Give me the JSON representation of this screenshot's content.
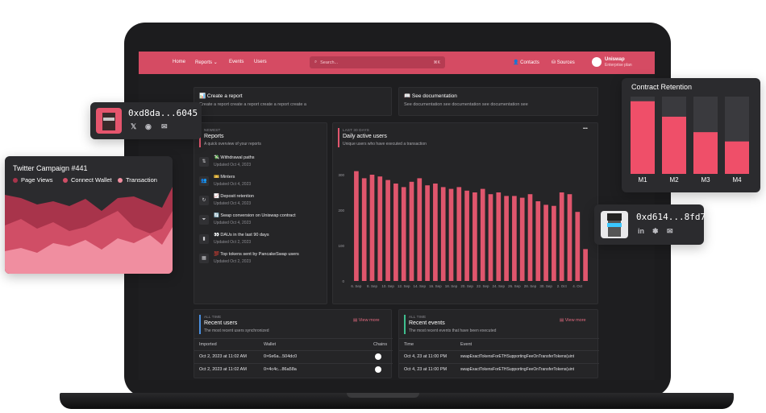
{
  "nav": {
    "home": "Home",
    "reports": "Reports",
    "events": "Events",
    "users": "Users",
    "search_placeholder": "Search...",
    "search_shortcut": "⌘K",
    "contacts": "Contacts",
    "sources": "Sources",
    "org_name": "Uniswap",
    "org_plan": "Enterprise plan"
  },
  "quick_actions": {
    "create_report_title": "📊 Create a report",
    "create_report_desc": "Create a report create a report create a report create a",
    "docs_title": "📖 See documentation",
    "docs_desc": "See documentation see documentation see documentation see"
  },
  "reports": {
    "overline": "NEWEST",
    "title": "Reports",
    "subtitle": "A quick overview of your reports",
    "items": [
      {
        "icon": "⇅",
        "name": "💸 Withdrawal paths",
        "date": "Updated Oct 4, 2023"
      },
      {
        "icon": "👥",
        "name": "🎫 Minters",
        "date": "Updated Oct 4, 2023"
      },
      {
        "icon": "↻",
        "name": "📈 Deposit retention",
        "date": "Updated Oct 4, 2023"
      },
      {
        "icon": "⏷",
        "name": "🔄 Swap conversion on Uniswap contract",
        "date": "Updated Oct 4, 2023"
      },
      {
        "icon": "▮",
        "name": "👀 DAUs in the last 90 days",
        "date": "Updated Oct 2, 2023"
      },
      {
        "icon": "▦",
        "name": "💯 Top tokens sent by PancakeSwap users",
        "date": "Updated Oct 2, 2023"
      }
    ]
  },
  "dau": {
    "overline": "LAST 30 DAYS",
    "title": "Daily active users",
    "subtitle": "Unique users who have executed a transaction",
    "menu": "•••"
  },
  "chart_data": {
    "type": "bar",
    "title": "Daily active users",
    "ylim": [
      0,
      350
    ],
    "yticks": [
      "0",
      "100",
      "200",
      "300"
    ],
    "xticks": [
      "6. Sep",
      "8. Sep",
      "10. Sep",
      "12. Sep",
      "14. Sep",
      "16. Sep",
      "18. Sep",
      "20. Sep",
      "22. Sep",
      "24. Sep",
      "26. Sep",
      "28. Sep",
      "30. Sep",
      "2. Oct",
      "4. Oct"
    ],
    "values": [
      355,
      340,
      330,
      335,
      320,
      305,
      300,
      295,
      310,
      290,
      300,
      315,
      305,
      300,
      290,
      280,
      295,
      300,
      305,
      290,
      285,
      285,
      290,
      275,
      270,
      270,
      280,
      275,
      275,
      260,
      255,
      250,
      270,
      265,
      260,
      230,
      205,
      200,
      195,
      190,
      190,
      180,
      170,
      165,
      155,
      150,
      145,
      140,
      140,
      135,
      130,
      120,
      115,
      110,
      105,
      100,
      95,
      90,
      90,
      85
    ],
    "bar_values": [
      310,
      290,
      300,
      295,
      285,
      275,
      265,
      280,
      290,
      270,
      275,
      265,
      260,
      265,
      255,
      250,
      260,
      245,
      250,
      240,
      240,
      235,
      245,
      225,
      215,
      212,
      250,
      245,
      195,
      90
    ],
    "bar_color": "#e0566d"
  },
  "recent_users": {
    "overline": "ALL TIME",
    "title": "Recent users",
    "subtitle": "The most recent users synchronized",
    "view_more": "▤ View more",
    "headers": [
      "Imported",
      "Wallet",
      "Chains"
    ],
    "rows": [
      [
        "Oct 2, 2023 at 11:02 AM",
        "0×6e6a...504dc0"
      ],
      [
        "Oct 2, 2023 at 11:02 AM",
        "0×4c4c...86a58a"
      ]
    ]
  },
  "recent_events": {
    "overline": "ALL TIME",
    "title": "Recent events",
    "subtitle": "The most recent events that have been executed",
    "view_more": "▤ View more",
    "headers": [
      "Time",
      "Event"
    ],
    "rows": [
      [
        "Oct 4, 23 at 11:00 PM",
        "swapExactTokensForETHSupportingFeeOnTransferTokens(uint"
      ],
      [
        "Oct 4, 23 at 11:00 PM",
        "swapExactTokensForETHSupportingFeeOnTransferTokens(uint"
      ]
    ]
  },
  "profile_a": {
    "address": "0xd8da...6045",
    "socials": [
      "𝕏",
      "◉",
      "✉"
    ]
  },
  "profile_b": {
    "address": "0xd614...8fd7",
    "socials": [
      "in",
      "✽",
      "✉"
    ]
  },
  "twitter": {
    "title": "Twitter Campaign #441",
    "legend": [
      {
        "label": "Page Views",
        "color": "#a8344b"
      },
      {
        "label": "Connect Wallet",
        "color": "#d04e66"
      },
      {
        "label": "Transaction",
        "color": "#f08ea0"
      }
    ]
  },
  "retention": {
    "title": "Contract Retention",
    "labels": [
      "M1",
      "M2",
      "M3",
      "M4"
    ],
    "fractions": [
      0.94,
      0.74,
      0.54,
      0.42
    ],
    "fill_color": "#ef4f69",
    "track_color": "#3a3a3e"
  }
}
